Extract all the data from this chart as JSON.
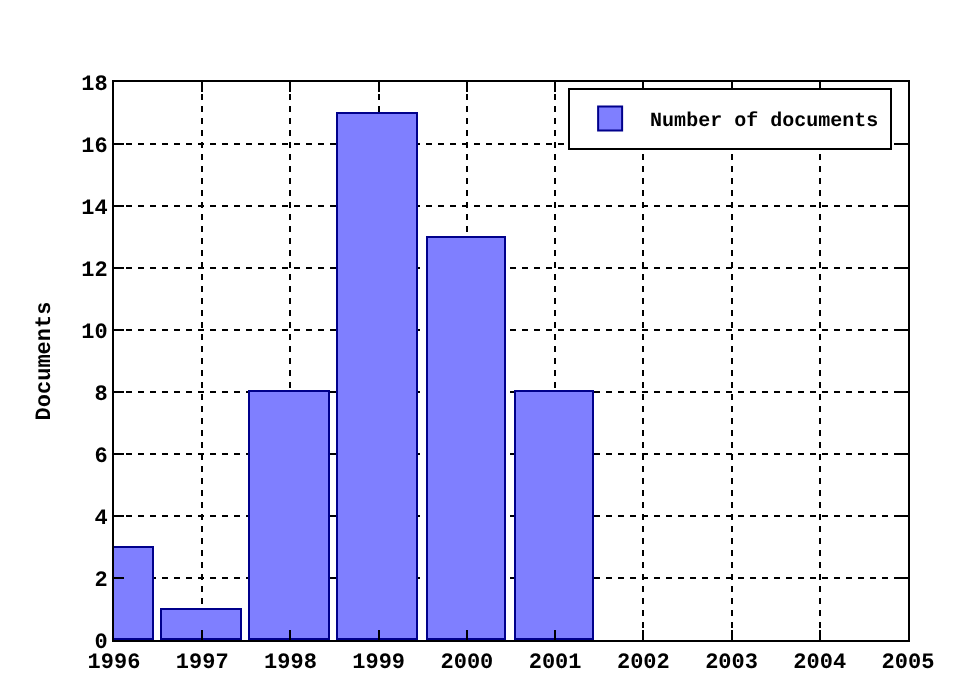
{
  "chart_data": {
    "type": "bar",
    "ylabel": "Documents",
    "x": [
      1996,
      1997,
      1998,
      1999,
      2000,
      2001
    ],
    "series": [
      {
        "name": "Number of documents",
        "color": "#7f7fff",
        "values": [
          3,
          1,
          8,
          17,
          13,
          8
        ]
      }
    ],
    "xlim": [
      1996,
      2005
    ],
    "xticks": [
      1996,
      1997,
      1998,
      1999,
      2000,
      2001,
      2002,
      2003,
      2004,
      2005
    ],
    "ylim": [
      0,
      18
    ],
    "yticks": [
      0,
      2,
      4,
      6,
      8,
      10,
      12,
      14,
      16,
      18
    ],
    "grid": true,
    "legend": "top right"
  }
}
